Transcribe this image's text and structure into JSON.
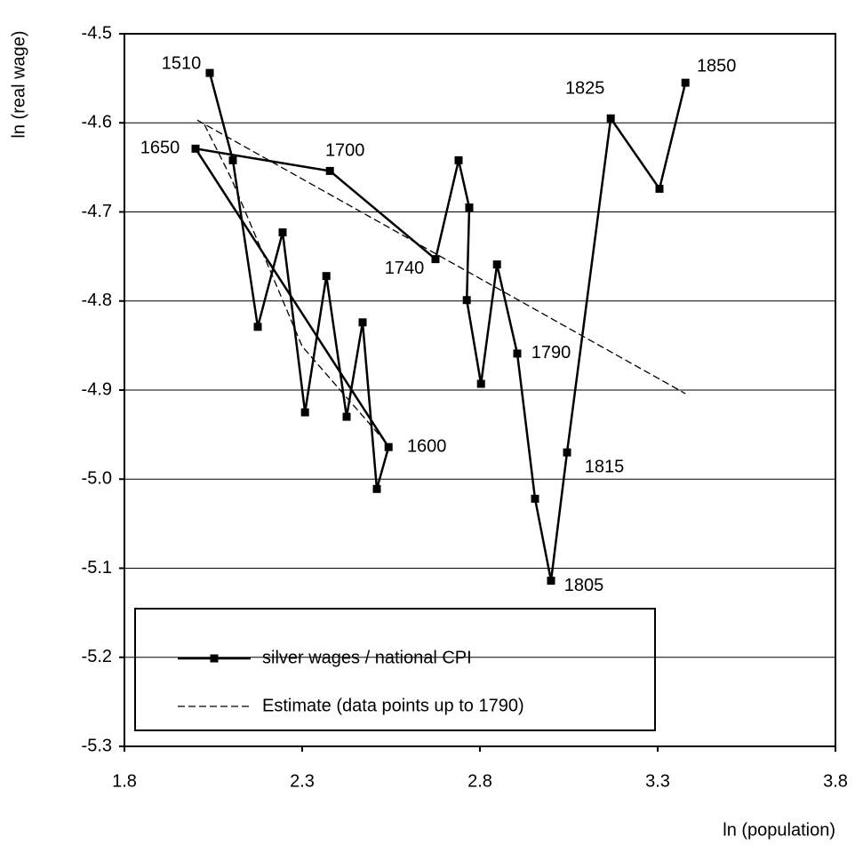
{
  "chart_data": {
    "type": "line",
    "x_label": "ln (population)",
    "y_label": "ln (real wage)",
    "xlim": [
      1.8,
      3.8
    ],
    "xticks": [
      1.8,
      2.3,
      2.8,
      3.3,
      3.8
    ],
    "ylim": [
      -5.3,
      -4.5
    ],
    "yticks": [
      -5.3,
      -5.2,
      -5.1,
      {
        "value": -5,
        "label": "-5.0"
      },
      -4.9,
      -4.8,
      -4.7,
      -4.6,
      -4.5
    ],
    "grid": true,
    "legend": "lower left",
    "series": [
      {
        "name": "silver wages / national CPI",
        "color": "#000000",
        "style": "solid",
        "marker": "square",
        "x": [
          2.04,
          2.105,
          2.175,
          2.245,
          2.308,
          2.368,
          2.425,
          2.47,
          2.51,
          2.543,
          2.0,
          2.378,
          2.675,
          2.74,
          2.77,
          2.763,
          2.803,
          2.848,
          2.905,
          2.955,
          3.0,
          3.045,
          3.168,
          3.305,
          3.378
        ],
        "values": [
          -4.544,
          -4.642,
          -4.829,
          -4.723,
          -4.925,
          -4.772,
          -4.93,
          -4.824,
          -5.011,
          -4.964,
          -4.629,
          -4.654,
          -4.753,
          -4.642,
          -4.695,
          -4.799,
          -4.893,
          -4.759,
          -4.859,
          -5.022,
          -5.114,
          -4.97,
          -4.595,
          -4.674,
          -4.555
        ],
        "point_labels": [
          "1510",
          null,
          null,
          null,
          null,
          null,
          null,
          null,
          null,
          "1600",
          "1650",
          "1700",
          "1740",
          null,
          null,
          null,
          null,
          null,
          "1790",
          null,
          "1805",
          "1815",
          "1825",
          null,
          "1850"
        ]
      },
      {
        "name": "Estimate (data points up to 1790)",
        "color": "#000000",
        "style": "dashed",
        "marker": "none",
        "x": [
          2.005,
          3.378,
          null,
          2.025,
          2.1,
          2.3,
          2.54
        ],
        "values": [
          -4.597,
          -4.904,
          null,
          -4.602,
          -4.662,
          -4.851,
          -4.961
        ]
      }
    ]
  }
}
